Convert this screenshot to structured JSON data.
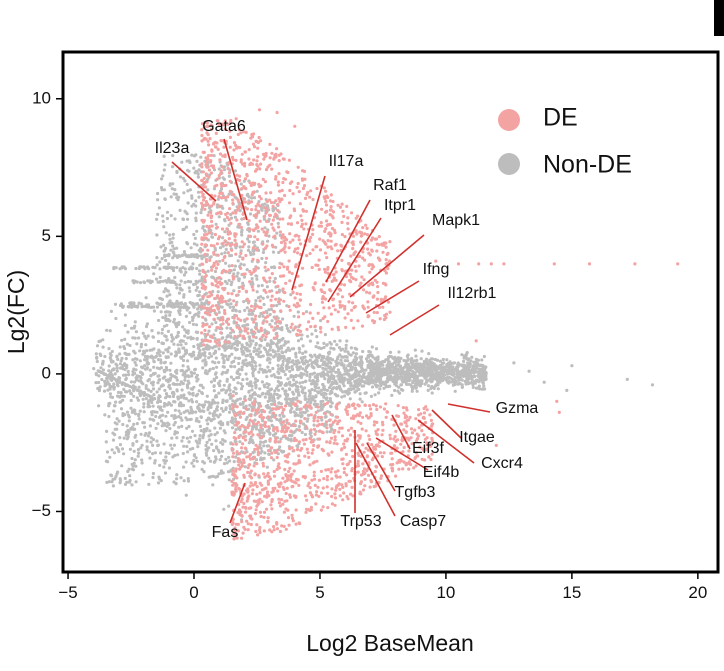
{
  "chart_data": {
    "type": "scatter",
    "title": "",
    "xlabel": "Log2 BaseMean",
    "ylabel": "Lg2(FC)",
    "xlim": [
      -5.2,
      20.8
    ],
    "ylim": [
      -7.2,
      11.7
    ],
    "xticks": [
      -5,
      0,
      5,
      10,
      15,
      20
    ],
    "xtick_labels": [
      "−5",
      "0",
      "5",
      "10",
      "15",
      "20"
    ],
    "yticks": [
      -5,
      0,
      5,
      10
    ],
    "ytick_labels": [
      "−5",
      "0",
      "5",
      "10"
    ],
    "grid": false,
    "legend_position": "top-right",
    "series": [
      {
        "name": "DE",
        "color": "#F4A3A3"
      },
      {
        "name": "Non-DE",
        "color": "#BDBDBD"
      }
    ],
    "annotations": [
      {
        "label": "Gata6",
        "point": [
          2.1,
          5.6
        ]
      },
      {
        "label": "Il23a",
        "point": [
          0.8,
          4.3
        ]
      },
      {
        "label": "Il17a",
        "point": [
          3.7,
          3.0
        ]
      },
      {
        "label": "Raf1",
        "point": [
          5.0,
          3.3
        ]
      },
      {
        "label": "Itpr1",
        "point": [
          5.1,
          2.5
        ]
      },
      {
        "label": "Mapk1",
        "point": [
          6.5,
          2.7
        ]
      },
      {
        "label": "Ifng",
        "point": [
          6.6,
          2.1
        ]
      },
      {
        "label": "Il12rb1",
        "point": [
          7.3,
          1.3
        ]
      },
      {
        "label": "Gzma",
        "point": [
          9.7,
          -1.0
        ]
      },
      {
        "label": "Itgae",
        "point": [
          9.1,
          -1.3
        ]
      },
      {
        "label": "Cxcr4",
        "point": [
          8.6,
          -1.5
        ]
      },
      {
        "label": "Eif3f",
        "point": [
          7.4,
          -1.4
        ]
      },
      {
        "label": "Eif4b",
        "point": [
          7.1,
          -2.1
        ]
      },
      {
        "label": "Tgfb3",
        "point": [
          6.6,
          -2.4
        ]
      },
      {
        "label": "Casp7",
        "point": [
          6.0,
          -2.5
        ]
      },
      {
        "label": "Trp53",
        "point": [
          6.1,
          -2.0
        ]
      },
      {
        "label": "Fas",
        "point": [
          2.0,
          -4.1
        ]
      }
    ]
  }
}
